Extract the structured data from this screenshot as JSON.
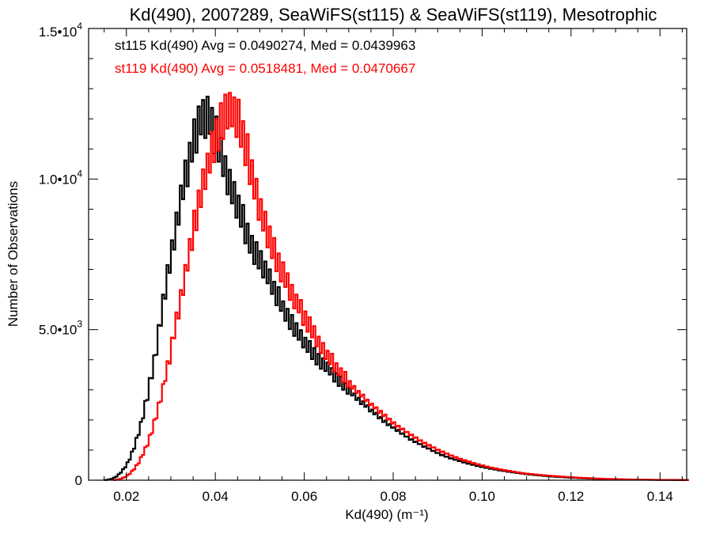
{
  "chart_data": {
    "type": "line",
    "title": "Kd(490), 2007289, SeaWiFS(st115) & SeaWiFS(st119), Mesotrophic",
    "xlabel": "Kd(490) (m⁻¹)",
    "ylabel": "Number of Observations",
    "xlim": [
      0.0115,
      0.146
    ],
    "ylim": [
      0,
      15000
    ],
    "x_ticks": [
      0.02,
      0.04,
      0.06,
      0.08,
      0.1,
      0.12,
      0.14
    ],
    "x_tick_labels": [
      "0.02",
      "0.04",
      "0.06",
      "0.08",
      "0.10",
      "0.12",
      "0.14"
    ],
    "y_ticks": [
      0,
      5000,
      10000,
      15000
    ],
    "y_tick_labels": [
      {
        "mantissa": "0",
        "exp": ""
      },
      {
        "mantissa": "5.0•10",
        "exp": "3"
      },
      {
        "mantissa": "1.0•10",
        "exp": "4"
      },
      {
        "mantissa": "1.5•10",
        "exp": "4"
      }
    ],
    "series": [
      {
        "name": "st115",
        "color": "#000000",
        "legend": "st115 Kd(490) Avg = 0.0490274, Med = 0.0439963",
        "bin_width": 0.0005,
        "x": [
          0.015,
          0.016,
          0.017,
          0.018,
          0.019,
          0.02,
          0.021,
          0.022,
          0.023,
          0.024,
          0.025,
          0.026,
          0.027,
          0.028,
          0.029,
          0.03,
          0.031,
          0.032,
          0.033,
          0.034,
          0.035,
          0.036,
          0.037,
          0.038,
          0.039,
          0.04,
          0.041,
          0.042,
          0.043,
          0.044,
          0.045,
          0.046,
          0.047,
          0.048,
          0.05,
          0.052,
          0.054,
          0.056,
          0.058,
          0.06,
          0.062,
          0.064,
          0.066,
          0.068,
          0.07,
          0.072,
          0.074,
          0.076,
          0.078,
          0.08,
          0.082,
          0.084,
          0.086,
          0.088,
          0.09,
          0.092,
          0.094,
          0.096,
          0.098,
          0.1,
          0.102,
          0.104,
          0.106,
          0.108,
          0.11,
          0.115,
          0.12,
          0.125,
          0.13,
          0.135,
          0.14,
          0.146
        ],
        "y": [
          0,
          20,
          60,
          150,
          300,
          500,
          800,
          1200,
          1700,
          2300,
          3000,
          3800,
          4600,
          5600,
          6500,
          7400,
          8300,
          9100,
          9900,
          10600,
          11200,
          11700,
          12000,
          12100,
          11900,
          11500,
          11000,
          10500,
          10000,
          9500,
          9100,
          8700,
          8300,
          7900,
          7300,
          6700,
          6100,
          5500,
          5000,
          4600,
          4200,
          3900,
          3600,
          3300,
          3000,
          2700,
          2450,
          2200,
          1950,
          1750,
          1550,
          1350,
          1200,
          1050,
          900,
          780,
          680,
          590,
          510,
          440,
          380,
          330,
          280,
          240,
          200,
          130,
          80,
          50,
          30,
          18,
          10,
          5
        ]
      },
      {
        "name": "st119",
        "color": "#ff0000",
        "legend": "st119 Kd(490) Avg = 0.0518481, Med = 0.0470667",
        "bin_width": 0.0005,
        "x": [
          0.017,
          0.018,
          0.019,
          0.02,
          0.021,
          0.022,
          0.023,
          0.024,
          0.025,
          0.026,
          0.027,
          0.028,
          0.029,
          0.03,
          0.031,
          0.032,
          0.033,
          0.034,
          0.035,
          0.036,
          0.037,
          0.038,
          0.039,
          0.04,
          0.041,
          0.042,
          0.043,
          0.044,
          0.045,
          0.046,
          0.047,
          0.048,
          0.049,
          0.05,
          0.052,
          0.054,
          0.056,
          0.058,
          0.06,
          0.062,
          0.064,
          0.066,
          0.068,
          0.07,
          0.072,
          0.074,
          0.076,
          0.078,
          0.08,
          0.082,
          0.084,
          0.086,
          0.088,
          0.09,
          0.092,
          0.094,
          0.096,
          0.098,
          0.1,
          0.102,
          0.104,
          0.106,
          0.108,
          0.11,
          0.115,
          0.12,
          0.125,
          0.13,
          0.135,
          0.14,
          0.146
        ],
        "y": [
          0,
          20,
          60,
          130,
          250,
          420,
          650,
          950,
          1300,
          1750,
          2300,
          2900,
          3600,
          4300,
          5100,
          5900,
          6700,
          7500,
          8300,
          9000,
          9700,
          10300,
          10900,
          11400,
          11800,
          12100,
          12300,
          12200,
          12000,
          11600,
          11000,
          10300,
          9600,
          9000,
          8100,
          7300,
          6600,
          6000,
          5400,
          4900,
          4400,
          4000,
          3600,
          3250,
          2950,
          2650,
          2400,
          2150,
          1900,
          1700,
          1500,
          1320,
          1160,
          1010,
          880,
          760,
          660,
          570,
          490,
          420,
          360,
          310,
          260,
          220,
          150,
          100,
          60,
          35,
          20,
          12,
          6
        ]
      }
    ]
  }
}
